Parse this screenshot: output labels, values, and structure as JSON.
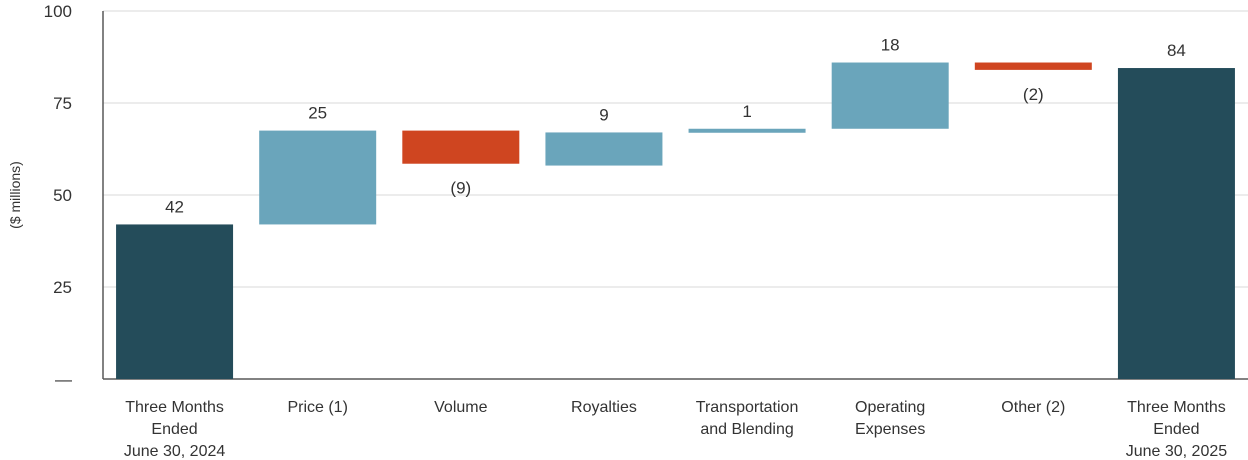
{
  "chart_data": {
    "type": "waterfall",
    "ylabel": "($ millions)",
    "ylim": [
      0,
      100
    ],
    "yticks": [
      {
        "value": 100,
        "label": "100"
      },
      {
        "value": 75,
        "label": "75"
      },
      {
        "value": 50,
        "label": "50"
      },
      {
        "value": 25,
        "label": "25"
      },
      {
        "value": 0,
        "label": "—"
      }
    ],
    "grid": true,
    "colors": {
      "total": "#244c5a",
      "increase": "#6aa5bb",
      "decrease": "#cf4520",
      "grid": "#d9d9d9",
      "axis": "#595959"
    },
    "bars": [
      {
        "category": [
          "Three Months",
          "Ended",
          "June 30, 2024"
        ],
        "kind": "total",
        "start": 0,
        "end": 42,
        "label": "42"
      },
      {
        "category": [
          "Price (1)"
        ],
        "kind": "increase",
        "start": 42,
        "end": 67.5,
        "label": "25"
      },
      {
        "category": [
          "Volume"
        ],
        "kind": "decrease",
        "start": 67.5,
        "end": 58.5,
        "label": "(9)"
      },
      {
        "category": [
          "Royalties"
        ],
        "kind": "increase",
        "start": 58,
        "end": 67,
        "label": "9"
      },
      {
        "category": [
          "Transportation",
          "and Blending"
        ],
        "kind": "increase",
        "start": 67,
        "end": 68,
        "label": "1"
      },
      {
        "category": [
          "Operating",
          "Expenses"
        ],
        "kind": "increase",
        "start": 68,
        "end": 86,
        "label": "18"
      },
      {
        "category": [
          "Other (2)"
        ],
        "kind": "decrease",
        "start": 86,
        "end": 84,
        "label": "(2)"
      },
      {
        "category": [
          "Three Months",
          "Ended",
          "June 30, 2025"
        ],
        "kind": "total",
        "start": 0,
        "end": 84.5,
        "label": "84"
      }
    ]
  }
}
